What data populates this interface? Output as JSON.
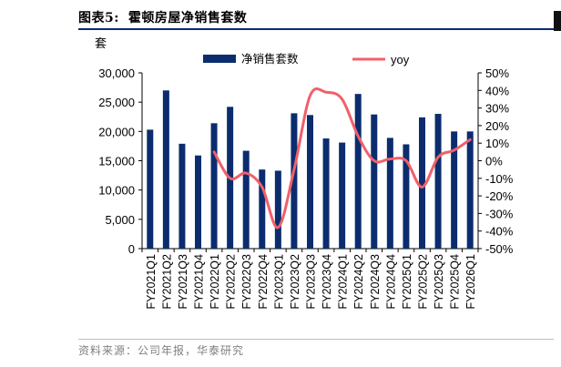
{
  "header": {
    "figure_number": "图表5:",
    "title": "霍顿房屋净销售套数"
  },
  "footer": {
    "source": "资料来源：公司年报，华泰研究"
  },
  "colors": {
    "bar": "#0b2d6e",
    "line": "#f0606a",
    "rule": "#0b2d6e"
  },
  "chart_data": {
    "type": "bar",
    "title": "霍顿房屋净销售套数",
    "ylabel": "套",
    "categories": [
      "FY2021Q1",
      "FY2021Q2",
      "FY2021Q3",
      "FY2021Q4",
      "FY2022Q1",
      "FY2022Q2",
      "FY2022Q3",
      "FY2022Q4",
      "FY2023Q1",
      "FY2023Q2",
      "FY2023Q3",
      "FY2023Q4",
      "FY2024Q1",
      "FY2024Q2",
      "FY2024Q3",
      "FY2024Q4",
      "FY2025Q1",
      "FY2025Q2",
      "FY2025Q3",
      "FY2025Q4",
      "FY2026Q1"
    ],
    "series": [
      {
        "name": "净销售套数",
        "type": "bar",
        "axis": "left",
        "values": [
          20300,
          27000,
          17900,
          15900,
          21400,
          24200,
          16700,
          13500,
          13300,
          23100,
          22800,
          18800,
          18100,
          26400,
          22900,
          18900,
          17800,
          22400,
          23000,
          20000,
          20000
        ]
      },
      {
        "name": "yoy",
        "type": "line",
        "axis": "right",
        "values": [
          null,
          null,
          null,
          null,
          5,
          -10,
          -7,
          -15,
          -38,
          -5,
          37,
          39,
          35,
          14,
          0,
          1,
          0,
          -15,
          2,
          6,
          12
        ]
      }
    ],
    "ylim": [
      0,
      30000
    ],
    "yticks": [
      "0",
      "5,000",
      "10,000",
      "15,000",
      "20,000",
      "25,000",
      "30,000"
    ],
    "y2lim": [
      -50,
      50
    ],
    "y2ticks": [
      "-50%",
      "-40%",
      "-30%",
      "-20%",
      "-10%",
      "0%",
      "10%",
      "20%",
      "30%",
      "40%",
      "50%"
    ],
    "legend": {
      "position": "top-center",
      "entries": [
        "净销售套数",
        "yoy"
      ]
    },
    "grid": false
  }
}
